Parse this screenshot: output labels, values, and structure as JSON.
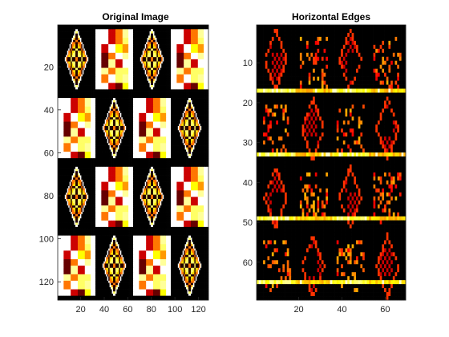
{
  "figure": {
    "background": "#ffffff",
    "colormap": "hot"
  },
  "chart_data": [
    {
      "type": "heatmap",
      "title": "Original Image",
      "xlabel": "",
      "ylabel": "",
      "xlim": [
        0.5,
        128.5
      ],
      "ylim": [
        0.5,
        128.5
      ],
      "xticks": [
        20,
        40,
        60,
        80,
        100,
        120
      ],
      "yticks": [
        20,
        40,
        60,
        80,
        100,
        120
      ],
      "xtick_labels": [
        "20",
        "40",
        "60",
        "80",
        "100",
        "120"
      ],
      "ytick_labels": [
        "20",
        "40",
        "60",
        "80",
        "100",
        "120"
      ],
      "image_size": [
        128,
        128
      ],
      "tile_size": 32,
      "tiles": [
        [
          "diamond",
          "rect",
          "diamond",
          "rect"
        ],
        [
          "rect",
          "diamond",
          "rect",
          "diamond"
        ],
        [
          "diamond",
          "rect",
          "diamond",
          "rect"
        ],
        [
          "rect",
          "diamond",
          "rect",
          "diamond"
        ]
      ],
      "value_range": [
        0,
        1
      ]
    },
    {
      "type": "heatmap",
      "title": "Horizontal Edges",
      "xlabel": "",
      "ylabel": "",
      "xlim": [
        0.5,
        69.5
      ],
      "ylim": [
        0.5,
        69.5
      ],
      "xticks": [
        20,
        40,
        60
      ],
      "yticks": [
        10,
        20,
        30,
        40,
        50,
        60
      ],
      "xtick_labels": [
        "20",
        "40",
        "60"
      ],
      "ytick_labels": [
        "10",
        "20",
        "30",
        "40",
        "50",
        "60"
      ],
      "image_size": [
        69,
        69
      ],
      "edge_rows": [
        17,
        33,
        49,
        65
      ],
      "value_range": [
        0,
        1
      ]
    }
  ]
}
